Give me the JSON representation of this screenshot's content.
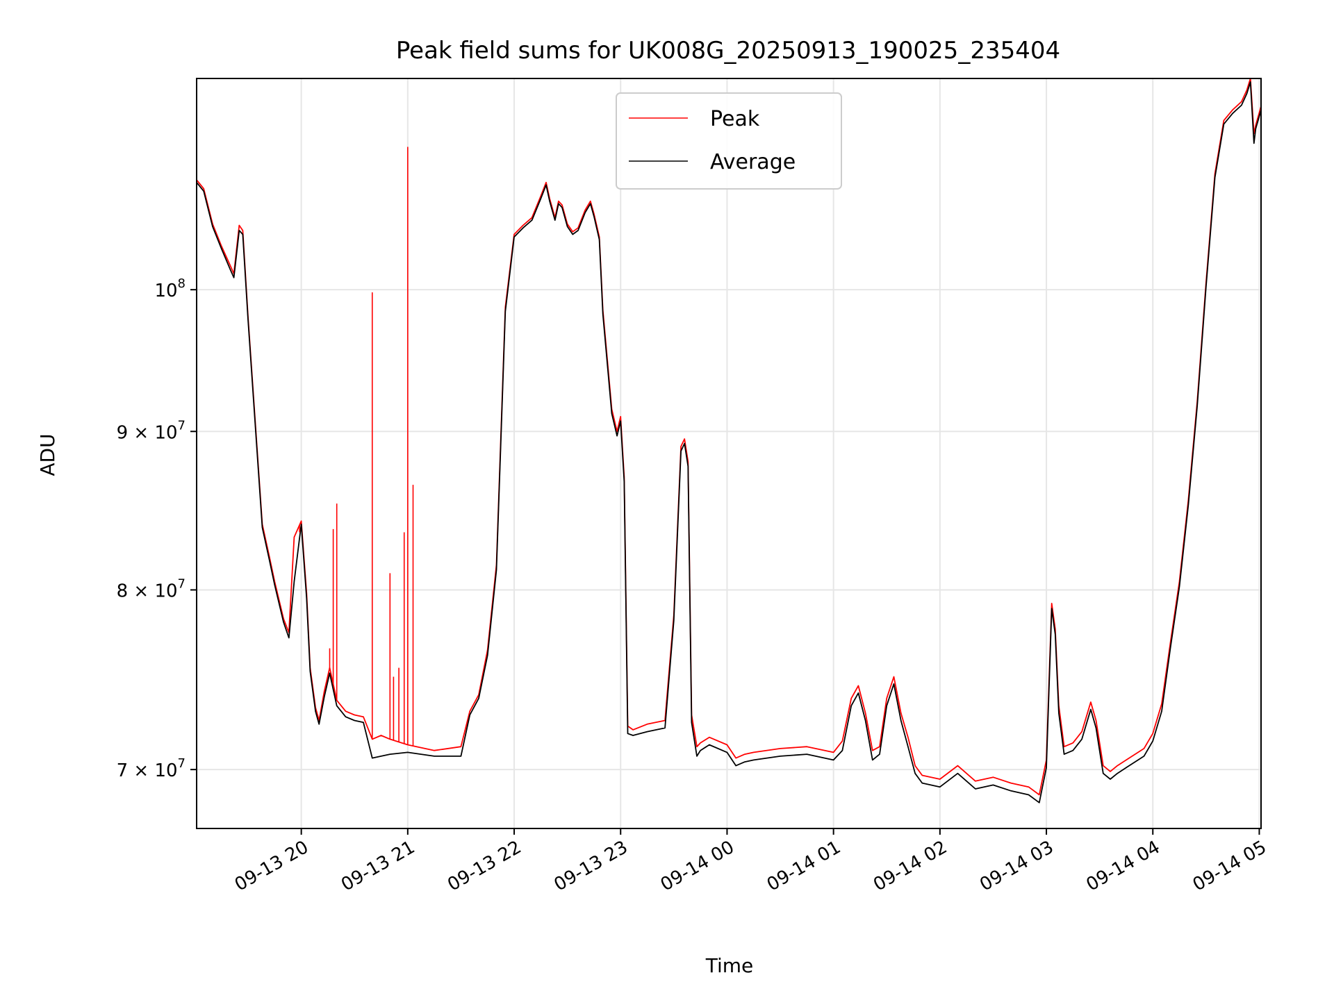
{
  "chart_data": {
    "type": "line",
    "title": "Peak field sums for UK008G_20250913_190025_235404",
    "xlabel": "Time",
    "ylabel": "ADU",
    "yscale": "log",
    "ylim": [
      67000000,
      117000000
    ],
    "xlim": [
      "09-13 19:01",
      "09-14 05:01"
    ],
    "grid": true,
    "legend_position": "top-center",
    "x_ticks": [
      "09-13 20",
      "09-13 21",
      "09-13 22",
      "09-13 23",
      "09-14 00",
      "09-14 01",
      "09-14 02",
      "09-14 03",
      "09-14 04",
      "09-14 05"
    ],
    "y_ticks": [
      {
        "value": 70000000,
        "mantissa": "7",
        "exponent": "7"
      },
      {
        "value": 80000000,
        "mantissa": "8",
        "exponent": "7"
      },
      {
        "value": 90000000,
        "mantissa": "9",
        "exponent": "7"
      },
      {
        "value": 100000000,
        "mantissa": "",
        "exponent": "8"
      }
    ],
    "tick_base": "10",
    "series": [
      {
        "name": "Peak",
        "color": "#ff0000",
        "x": [
          "09-13 19:01",
          "09-13 19:05",
          "09-13 19:10",
          "09-13 19:15",
          "09-13 19:20",
          "09-13 19:22",
          "09-13 19:25",
          "09-13 19:27",
          "09-13 19:30",
          "09-13 19:35",
          "09-13 19:38",
          "09-13 19:42",
          "09-13 19:45",
          "09-13 19:50",
          "09-13 19:53",
          "09-13 19:56",
          "09-13 20:00",
          "09-13 20:03",
          "09-13 20:05",
          "09-13 20:08",
          "09-13 20:10",
          "09-13 20:13",
          "09-13 20:16",
          "09-13 20:20",
          "09-13 20:25",
          "09-13 20:30",
          "09-13 20:35",
          "09-13 20:40",
          "09-13 20:45",
          "09-13 20:50",
          "09-13 21:00",
          "09-13 21:15",
          "09-13 21:30",
          "09-13 21:35",
          "09-13 21:40",
          "09-13 21:45",
          "09-13 21:50",
          "09-13 21:55",
          "09-13 22:00",
          "09-13 22:05",
          "09-13 22:10",
          "09-13 22:15",
          "09-13 22:18",
          "09-13 22:20",
          "09-13 22:23",
          "09-13 22:25",
          "09-13 22:27",
          "09-13 22:30",
          "09-13 22:33",
          "09-13 22:36",
          "09-13 22:40",
          "09-13 22:43",
          "09-13 22:45",
          "09-13 22:48",
          "09-13 22:50",
          "09-13 22:55",
          "09-13 22:58",
          "09-13 23:00",
          "09-13 23:02",
          "09-13 23:04",
          "09-13 23:07",
          "09-13 23:15",
          "09-13 23:25",
          "09-13 23:30",
          "09-13 23:34",
          "09-13 23:36",
          "09-13 23:38",
          "09-13 23:40",
          "09-13 23:43",
          "09-13 23:45",
          "09-13 23:50",
          "09-14 00:00",
          "09-14 00:05",
          "09-14 00:10",
          "09-14 00:15",
          "09-14 00:30",
          "09-14 00:45",
          "09-14 01:00",
          "09-14 01:05",
          "09-14 01:10",
          "09-14 01:14",
          "09-14 01:18",
          "09-14 01:22",
          "09-14 01:26",
          "09-14 01:30",
          "09-14 01:34",
          "09-14 01:38",
          "09-14 01:42",
          "09-14 01:46",
          "09-14 01:50",
          "09-14 02:00",
          "09-14 02:10",
          "09-14 02:20",
          "09-14 02:30",
          "09-14 02:40",
          "09-14 02:50",
          "09-14 02:56",
          "09-14 03:00",
          "09-14 03:03",
          "09-14 03:05",
          "09-14 03:07",
          "09-14 03:10",
          "09-14 03:15",
          "09-14 03:20",
          "09-14 03:25",
          "09-14 03:28",
          "09-14 03:32",
          "09-14 03:36",
          "09-14 03:40",
          "09-14 03:45",
          "09-14 03:50",
          "09-14 03:55",
          "09-14 04:00",
          "09-14 04:05",
          "09-14 04:10",
          "09-14 04:15",
          "09-14 04:20",
          "09-14 04:25",
          "09-14 04:30",
          "09-14 04:35",
          "09-14 04:40",
          "09-14 04:45",
          "09-14 04:50",
          "09-14 04:53",
          "09-14 04:55",
          "09-14 04:57",
          "09-14 04:58",
          "09-14 05:01"
        ],
        "values": [
          108500000,
          107800000,
          105000000,
          103300000,
          101800000,
          101200000,
          104900000,
          104500000,
          98000000,
          89000000,
          84000000,
          82000000,
          80500000,
          78300000,
          77500000,
          83200000,
          84200000,
          79800000,
          75500000,
          73300000,
          72600000,
          74200000,
          75500000,
          73700000,
          73100000,
          72900000,
          72800000,
          71600000,
          71800000,
          71600000,
          71300000,
          71000000,
          71200000,
          73100000,
          74000000,
          76500000,
          81500000,
          98700000,
          104200000,
          104900000,
          105500000,
          107200000,
          108300000,
          107000000,
          105500000,
          106800000,
          106500000,
          105000000,
          104400000,
          104700000,
          106100000,
          106800000,
          105800000,
          104000000,
          98500000,
          91500000,
          90000000,
          91000000,
          87000000,
          72300000,
          72100000,
          72400000,
          72600000,
          78500000,
          89000000,
          89500000,
          88000000,
          72900000,
          71200000,
          71400000,
          71700000,
          71300000,
          70600000,
          70800000,
          70900000,
          71100000,
          71200000,
          70900000,
          71500000,
          73800000,
          74500000,
          73000000,
          71000000,
          71200000,
          73800000,
          75000000,
          73000000,
          71700000,
          70200000,
          69700000,
          69500000,
          70200000,
          69400000,
          69600000,
          69300000,
          69100000,
          68700000,
          70500000,
          79200000,
          77700000,
          73400000,
          71200000,
          71400000,
          72000000,
          73600000,
          72600000,
          70200000,
          69900000,
          70200000,
          70500000,
          70800000,
          71100000,
          71900000,
          73500000,
          77000000,
          80500000,
          85500000,
          92000000,
          100500000,
          109000000,
          113400000,
          114300000,
          115000000,
          116000000,
          117000000,
          112300000,
          113000000,
          114600000
        ]
      },
      {
        "name": "Average",
        "color": "#000000",
        "x": [
          "09-13 19:01",
          "09-13 19:05",
          "09-13 19:10",
          "09-13 19:15",
          "09-13 19:20",
          "09-13 19:22",
          "09-13 19:25",
          "09-13 19:27",
          "09-13 19:30",
          "09-13 19:35",
          "09-13 19:38",
          "09-13 19:42",
          "09-13 19:45",
          "09-13 19:50",
          "09-13 19:53",
          "09-13 19:56",
          "09-13 20:00",
          "09-13 20:03",
          "09-13 20:05",
          "09-13 20:08",
          "09-13 20:10",
          "09-13 20:13",
          "09-13 20:16",
          "09-13 20:20",
          "09-13 20:25",
          "09-13 20:30",
          "09-13 20:35",
          "09-13 20:40",
          "09-13 20:45",
          "09-13 20:50",
          "09-13 21:00",
          "09-13 21:15",
          "09-13 21:30",
          "09-13 21:35",
          "09-13 21:40",
          "09-13 21:45",
          "09-13 21:50",
          "09-13 21:55",
          "09-13 22:00",
          "09-13 22:05",
          "09-13 22:10",
          "09-13 22:15",
          "09-13 22:18",
          "09-13 22:20",
          "09-13 22:23",
          "09-13 22:25",
          "09-13 22:27",
          "09-13 22:30",
          "09-13 22:33",
          "09-13 22:36",
          "09-13 22:40",
          "09-13 22:43",
          "09-13 22:45",
          "09-13 22:48",
          "09-13 22:50",
          "09-13 22:55",
          "09-13 22:58",
          "09-13 23:00",
          "09-13 23:02",
          "09-13 23:04",
          "09-13 23:07",
          "09-13 23:15",
          "09-13 23:25",
          "09-13 23:30",
          "09-13 23:34",
          "09-13 23:36",
          "09-13 23:38",
          "09-13 23:40",
          "09-13 23:43",
          "09-13 23:45",
          "09-13 23:50",
          "09-14 00:00",
          "09-14 00:05",
          "09-14 00:10",
          "09-14 00:15",
          "09-14 00:30",
          "09-14 00:45",
          "09-14 01:00",
          "09-14 01:05",
          "09-14 01:10",
          "09-14 01:14",
          "09-14 01:18",
          "09-14 01:22",
          "09-14 01:26",
          "09-14 01:30",
          "09-14 01:34",
          "09-14 01:38",
          "09-14 01:42",
          "09-14 01:46",
          "09-14 01:50",
          "09-14 02:00",
          "09-14 02:10",
          "09-14 02:20",
          "09-14 02:30",
          "09-14 02:40",
          "09-14 02:50",
          "09-14 02:56",
          "09-14 03:00",
          "09-14 03:03",
          "09-14 03:05",
          "09-14 03:07",
          "09-14 03:10",
          "09-14 03:15",
          "09-14 03:20",
          "09-14 03:25",
          "09-14 03:28",
          "09-14 03:32",
          "09-14 03:36",
          "09-14 03:40",
          "09-14 03:45",
          "09-14 03:50",
          "09-14 03:55",
          "09-14 04:00",
          "09-14 04:05",
          "09-14 04:10",
          "09-14 04:15",
          "09-14 04:20",
          "09-14 04:25",
          "09-14 04:30",
          "09-14 04:35",
          "09-14 04:40",
          "09-14 04:45",
          "09-14 04:50",
          "09-14 04:53",
          "09-14 04:55",
          "09-14 04:57",
          "09-14 04:58",
          "09-14 05:01"
        ],
        "values": [
          108300000,
          107600000,
          104800000,
          103100000,
          101500000,
          100900000,
          104500000,
          104200000,
          97800000,
          88800000,
          83800000,
          81800000,
          80300000,
          78100000,
          77200000,
          80500000,
          84000000,
          79500000,
          75300000,
          73100000,
          72400000,
          73900000,
          75200000,
          73400000,
          72800000,
          72600000,
          72500000,
          70600000,
          70700000,
          70800000,
          70900000,
          70700000,
          70700000,
          72900000,
          73800000,
          76200000,
          81200000,
          98400000,
          104000000,
          104700000,
          105300000,
          107000000,
          108100000,
          106800000,
          105300000,
          106600000,
          106300000,
          104800000,
          104200000,
          104500000,
          105900000,
          106600000,
          105600000,
          103800000,
          98200000,
          91200000,
          89700000,
          90700000,
          86700000,
          71900000,
          71800000,
          72000000,
          72200000,
          78200000,
          88700000,
          89200000,
          87700000,
          72500000,
          70700000,
          71000000,
          71300000,
          70900000,
          70200000,
          70400000,
          70500000,
          70700000,
          70800000,
          70500000,
          71000000,
          73400000,
          74100000,
          72600000,
          70500000,
          70800000,
          73400000,
          74600000,
          72600000,
          71200000,
          69800000,
          69300000,
          69100000,
          69800000,
          69000000,
          69200000,
          68900000,
          68700000,
          68300000,
          70100000,
          78900000,
          77400000,
          73000000,
          70800000,
          71000000,
          71600000,
          73200000,
          72200000,
          69800000,
          69500000,
          69800000,
          70100000,
          70400000,
          70700000,
          71500000,
          73100000,
          76700000,
          80200000,
          85200000,
          91700000,
          100200000,
          108700000,
          113100000,
          114000000,
          114700000,
          115700000,
          116700000,
          111500000,
          112700000,
          114300000
        ]
      }
    ],
    "spikes": [
      {
        "series": "Peak",
        "x": "09-13 19:59",
        "value": 83500000
      },
      {
        "series": "Peak",
        "x": "09-13 20:16",
        "value": 76600000
      },
      {
        "series": "Peak",
        "x": "09-13 20:18",
        "value": 83700000
      },
      {
        "series": "Peak",
        "x": "09-13 20:20",
        "value": 85300000
      },
      {
        "series": "Peak",
        "x": "09-13 20:40",
        "value": 99800000
      },
      {
        "series": "Peak",
        "x": "09-13 20:50",
        "value": 81000000
      },
      {
        "series": "Peak",
        "x": "09-13 20:52",
        "value": 75000000
      },
      {
        "series": "Peak",
        "x": "09-13 20:55",
        "value": 75500000
      },
      {
        "series": "Peak",
        "x": "09-13 20:58",
        "value": 83500000
      },
      {
        "series": "Peak",
        "x": "09-13 21:00",
        "value": 111200000
      },
      {
        "series": "Peak",
        "x": "09-13 21:03",
        "value": 86500000
      }
    ]
  }
}
